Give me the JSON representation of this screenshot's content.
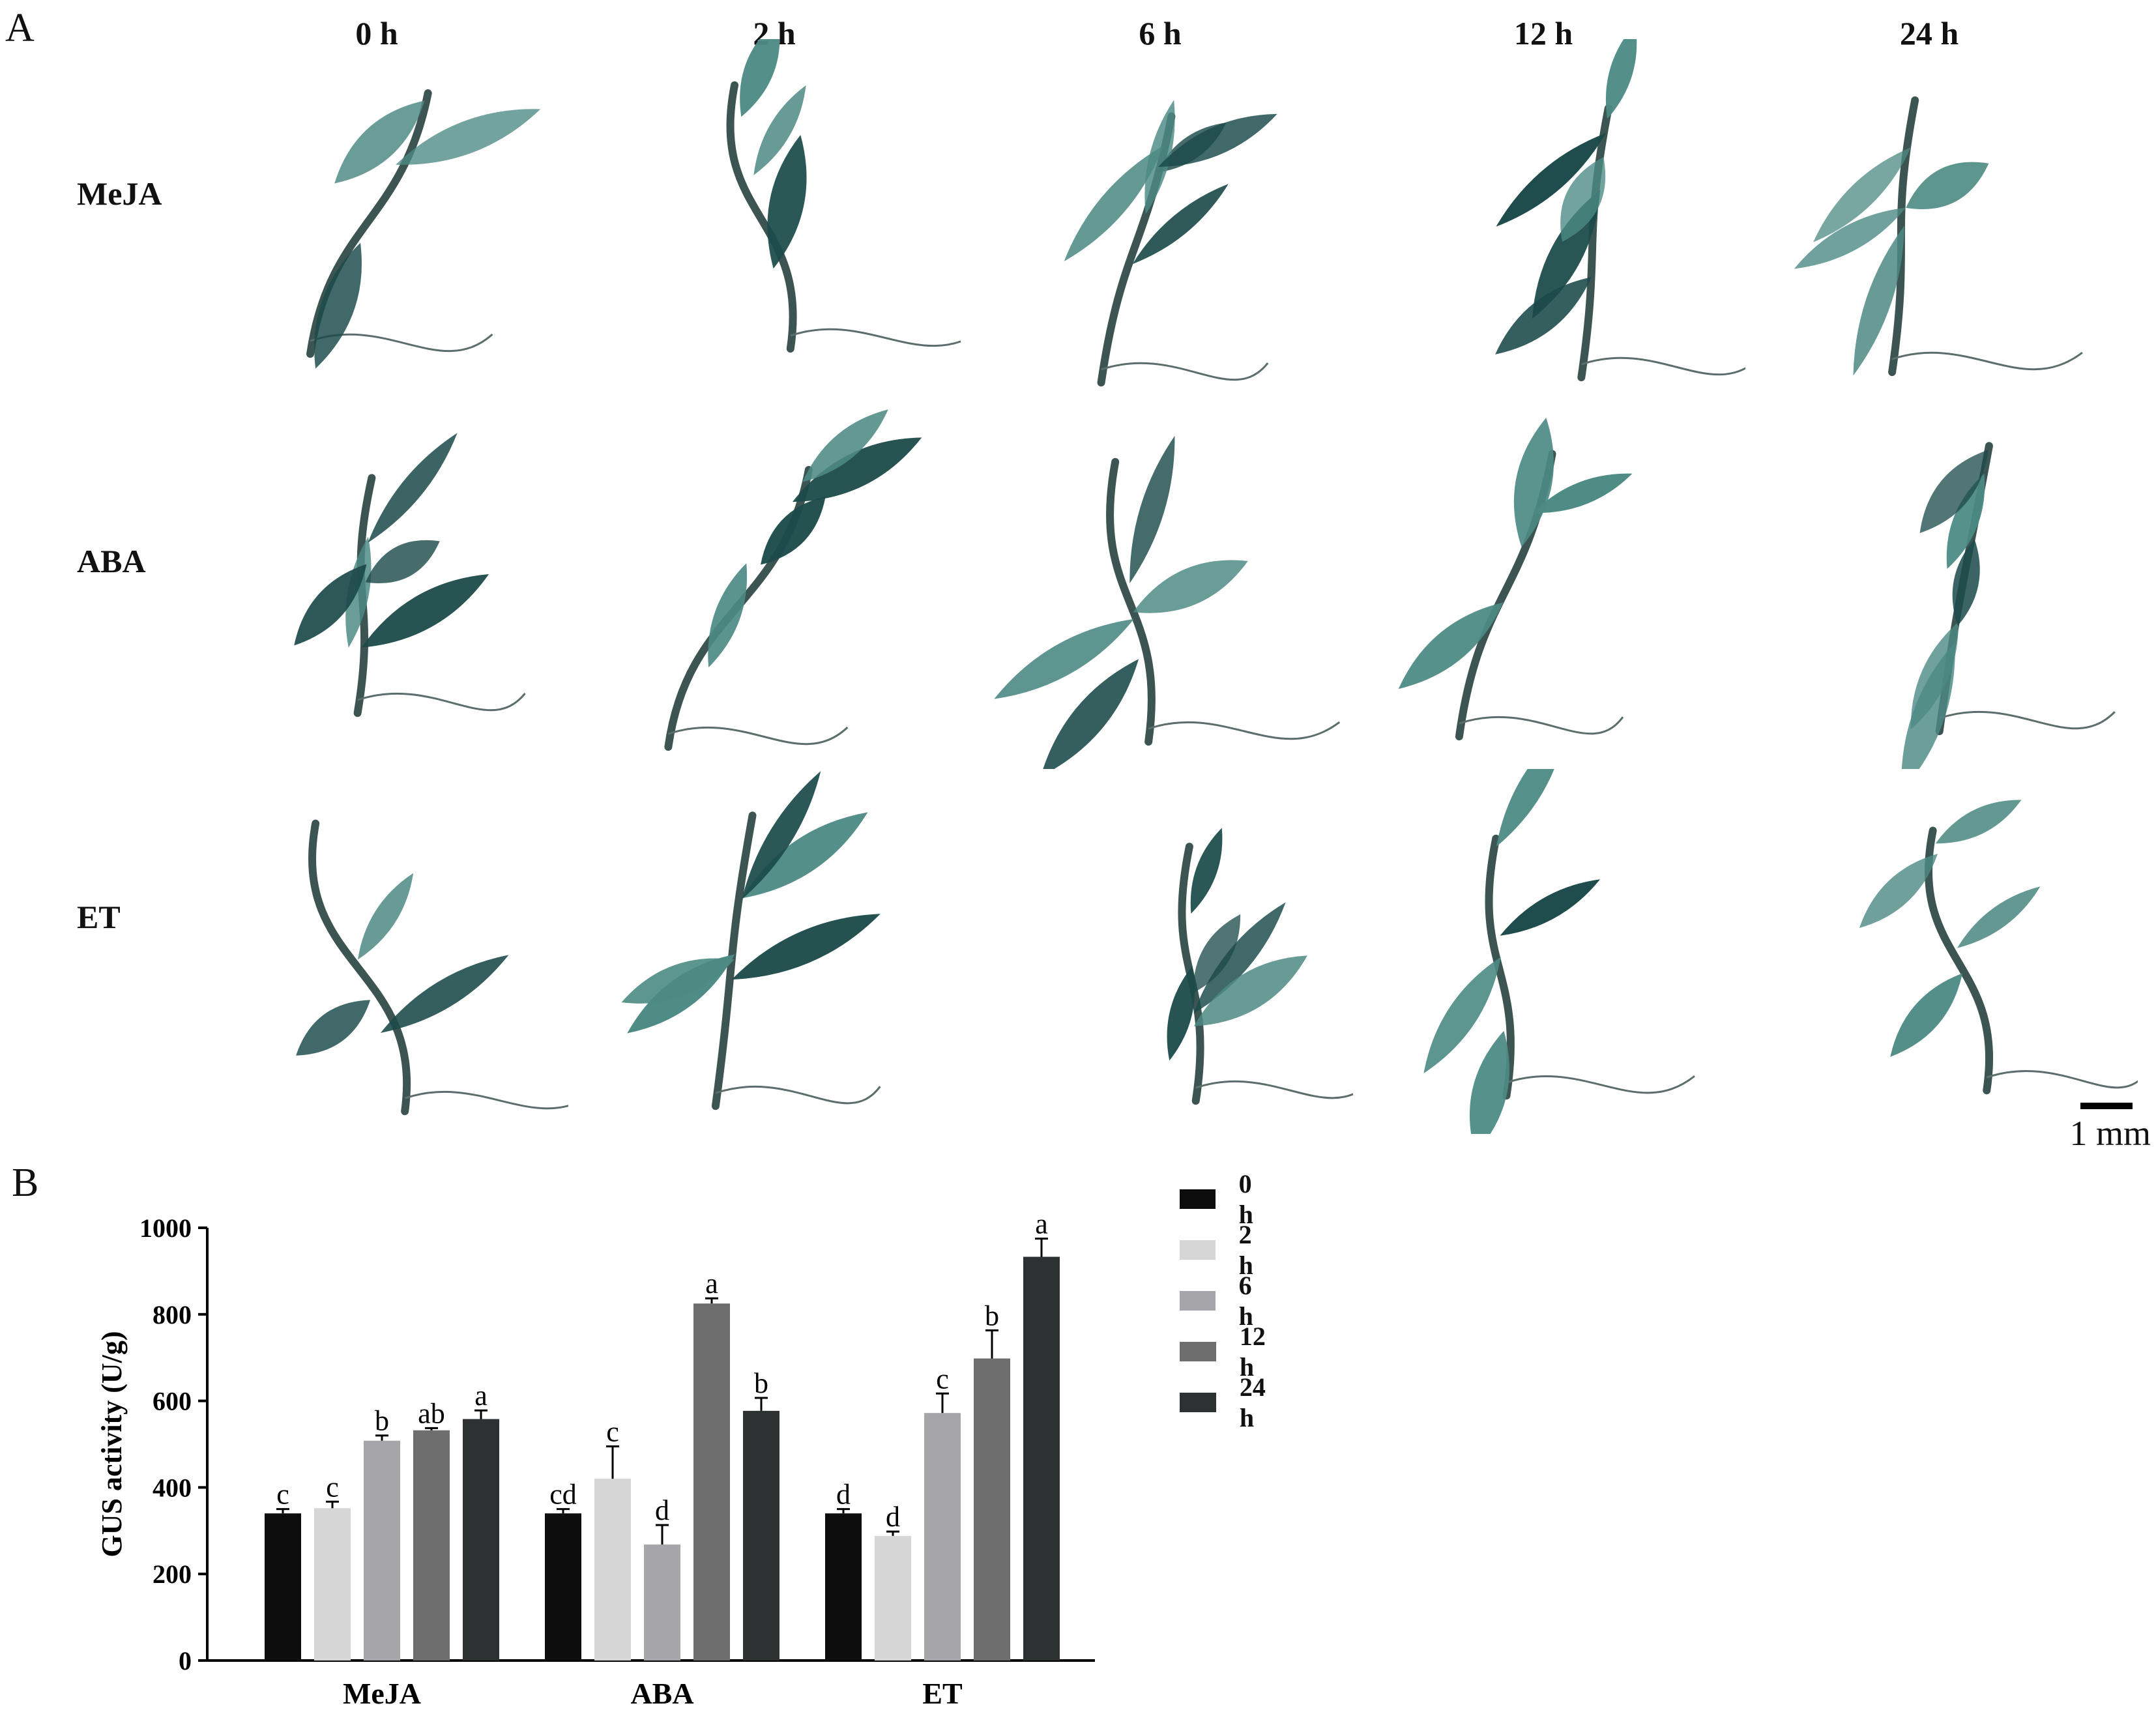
{
  "panel_a": {
    "letter": "A",
    "columns": [
      "0 h",
      "2 h",
      "6 h",
      "12 h",
      "24 h"
    ],
    "rows": [
      "MeJA",
      "ABA",
      "ET"
    ],
    "scale_label": "1 mm"
  },
  "panel_b": {
    "letter": "B"
  },
  "colors": {
    "0 h": "#0d0d0d",
    "2 h": "#d6d6d6",
    "6 h": "#a6a6aa",
    "12 h": "#6e6e6e",
    "24 h": "#2e3131",
    "leaf": "#4d8a84",
    "leaf_dark": "#1c4a4a",
    "stem": "#3c5452"
  },
  "chart_data": {
    "type": "bar",
    "categories": [
      "MeJA",
      "ABA",
      "ET"
    ],
    "series": [
      {
        "name": "0 h",
        "values": [
          340,
          340,
          340
        ],
        "errors": [
          10,
          10,
          10
        ],
        "letters": [
          "c",
          "cd",
          "d"
        ]
      },
      {
        "name": "2 h",
        "values": [
          352,
          420,
          288
        ],
        "errors": [
          15,
          75,
          10
        ],
        "letters": [
          "c",
          "c",
          "d"
        ]
      },
      {
        "name": "6 h",
        "values": [
          508,
          268,
          572
        ],
        "errors": [
          12,
          45,
          45
        ],
        "letters": [
          "b",
          "d",
          "c"
        ]
      },
      {
        "name": "12 h",
        "values": [
          532,
          825,
          698
        ],
        "errors": [
          5,
          12,
          65
        ],
        "letters": [
          "ab",
          "a",
          "b"
        ]
      },
      {
        "name": "24 h",
        "values": [
          558,
          577,
          933
        ],
        "errors": [
          20,
          30,
          42
        ],
        "letters": [
          "a",
          "b",
          "a"
        ]
      }
    ],
    "ylabel": "GUS activity (U/g)",
    "ylim": [
      0,
      1000
    ],
    "yticks": [
      0,
      200,
      400,
      600,
      800,
      1000
    ],
    "legend": "right",
    "grid": false
  }
}
